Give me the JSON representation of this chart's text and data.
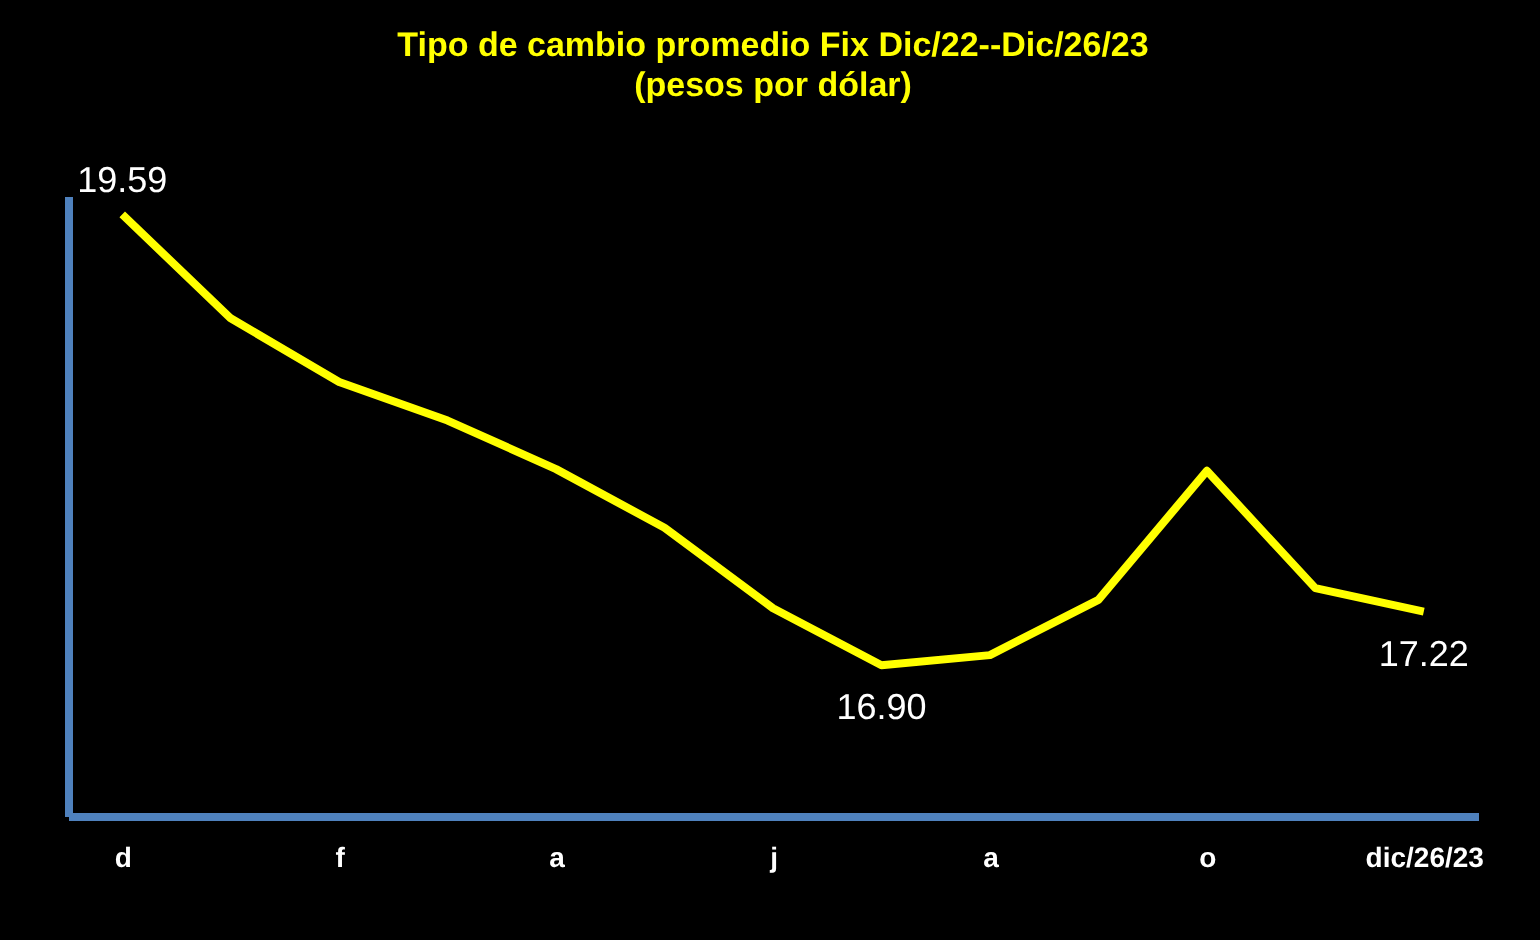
{
  "chart_data": {
    "type": "line",
    "title": "Tipo de cambio promedio Fix Dic/22--Dic/26/23",
    "subtitle": "(pesos por dólar)",
    "categories": [
      "d",
      null,
      "f",
      null,
      "a",
      null,
      "j",
      null,
      "a",
      null,
      "o",
      null,
      "dic/26/23"
    ],
    "series": [
      {
        "color": "#ffff00",
        "values": [
          19.59,
          18.97,
          18.59,
          18.36,
          18.07,
          17.72,
          17.24,
          16.9,
          16.96,
          17.29,
          18.06,
          17.36,
          17.22
        ],
        "value_labels": [
          "19.59",
          null,
          null,
          null,
          null,
          null,
          null,
          "16.90",
          null,
          null,
          null,
          null,
          "17.22"
        ]
      }
    ],
    "ylim": [
      16.0,
      19.7
    ],
    "tick_labels": "x",
    "grid": false,
    "marker": "none",
    "line_style": "solid"
  }
}
